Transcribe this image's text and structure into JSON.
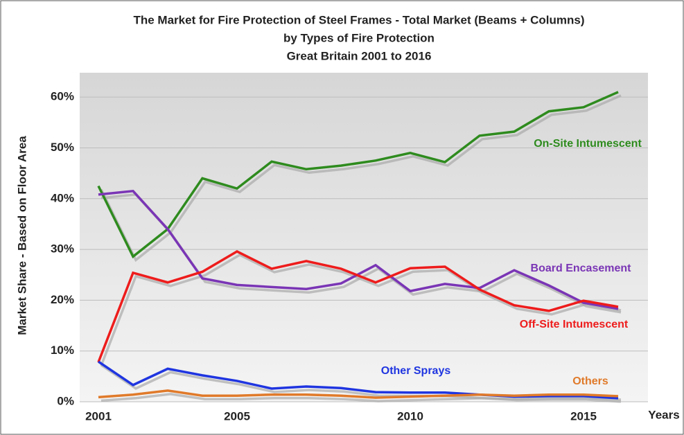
{
  "chart_data": {
    "type": "line",
    "title": [
      "The Market for Fire Protection of Steel Frames - Total Market (Beams + Columns)",
      "by Types of Fire Protection",
      "Great Britain 2001 to 2016"
    ],
    "x_label": "Years",
    "y_label": "Market Share - Based on Floor Area",
    "x": [
      2001,
      2002,
      2003,
      2004,
      2005,
      2006,
      2007,
      2008,
      2009,
      2010,
      2011,
      2012,
      2013,
      2014,
      2015,
      2016
    ],
    "series": [
      {
        "name": "On-Site Intumescent",
        "color": "#2e8b1e",
        "values": [
          42.5,
          28.6,
          34,
          44,
          42,
          47.3,
          45.8,
          46.5,
          47.5,
          49,
          47.2,
          52.4,
          53.2,
          57.2,
          58,
          61
        ]
      },
      {
        "name": "Board Encasement",
        "color": "#7a35b5",
        "values": [
          40.8,
          41.5,
          34,
          24.3,
          23,
          22.6,
          22.2,
          23.3,
          26.9,
          21.8,
          23.2,
          22.4,
          25.9,
          22.9,
          19.5,
          18.3
        ]
      },
      {
        "name": "Off-Site Intumescent",
        "color": "#ee1c1c",
        "values": [
          7.8,
          25.4,
          23.5,
          25.6,
          29.6,
          26.2,
          27.7,
          26.2,
          23.5,
          26.3,
          26.6,
          22.1,
          19,
          17.9,
          19.9,
          18.7
        ]
      },
      {
        "name": "Other Sprays",
        "color": "#1f35e0",
        "values": [
          7.9,
          3.3,
          6.5,
          5.2,
          4.1,
          2.6,
          3,
          2.7,
          1.9,
          1.8,
          1.8,
          1.4,
          1,
          1.1,
          1.1,
          0.7
        ]
      },
      {
        "name": "Others",
        "color": "#e07a2a",
        "values": [
          0.9,
          1.4,
          2.2,
          1.2,
          1.2,
          1.4,
          1.4,
          1.2,
          0.8,
          1,
          1.2,
          1.4,
          1.2,
          1.4,
          1.4,
          1.1
        ]
      }
    ],
    "xlim": [
      2000.46,
      2016.86
    ],
    "xticks": [
      2001,
      2005,
      2010,
      2015
    ],
    "ylim": [
      0,
      64.8
    ],
    "yticks": [
      {
        "value": 0,
        "label": "0%"
      },
      {
        "value": 10,
        "label": "10%"
      },
      {
        "value": 20,
        "label": "20%"
      },
      {
        "value": 30,
        "label": "30%"
      },
      {
        "value": 40,
        "label": "40%"
      },
      {
        "value": 50,
        "label": "50%"
      },
      {
        "value": 60,
        "label": "60%"
      }
    ],
    "grid": true
  }
}
